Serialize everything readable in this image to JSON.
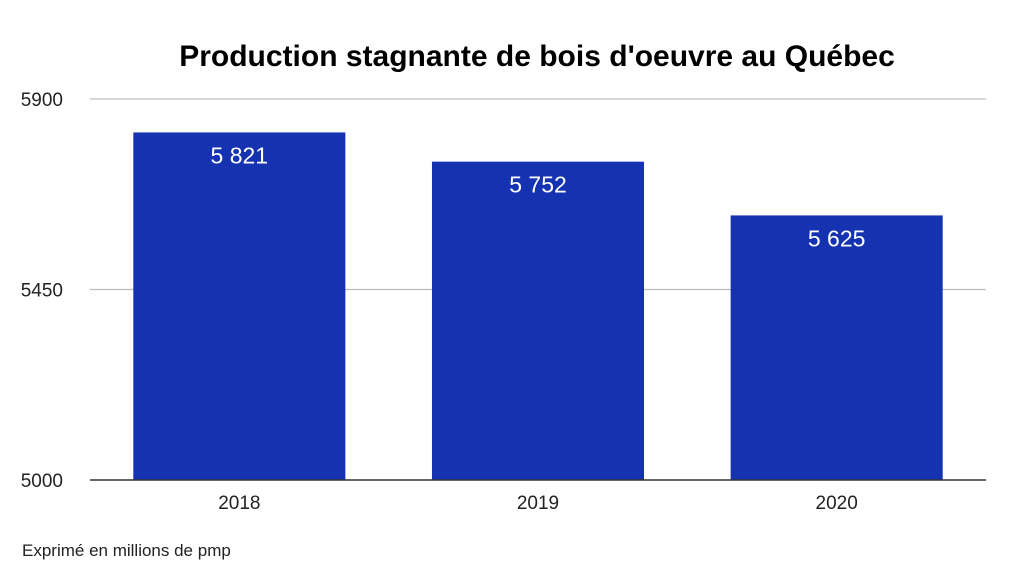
{
  "chart_data": {
    "type": "bar",
    "title": "Production stagnante de bois d'oeuvre au Québec",
    "categories": [
      "2018",
      "2019",
      "2020"
    ],
    "values": [
      5821,
      5752,
      5625
    ],
    "data_labels": [
      "5 821",
      "5 752",
      "5 625"
    ],
    "y_ticks": [
      5000,
      5450,
      5900
    ],
    "ylim": [
      5000,
      5900
    ],
    "xlabel": "",
    "ylabel": "",
    "grid": true,
    "bar_color": "#1533b0"
  },
  "footnote": "Exprimé en millions de pmp"
}
